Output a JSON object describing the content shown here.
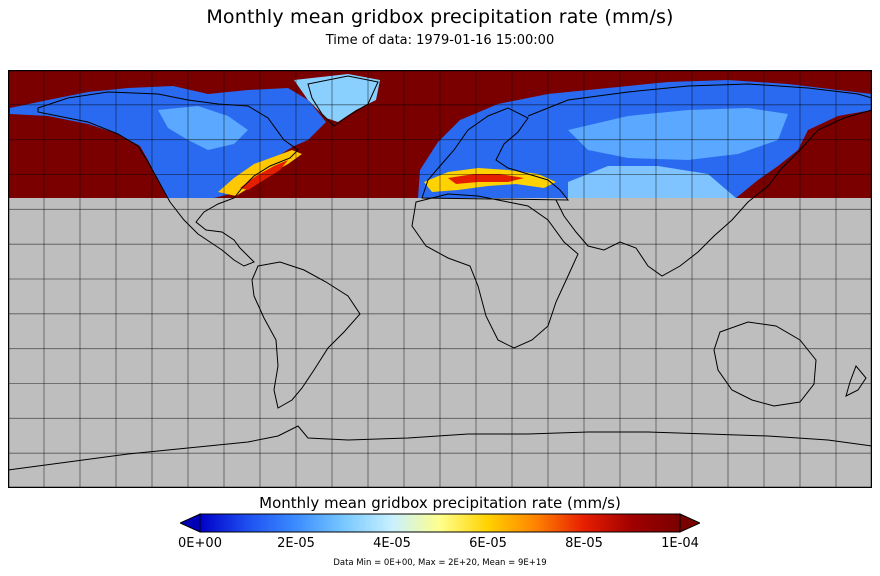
{
  "title": "Monthly mean gridbox precipitation rate (mm/s)",
  "subtitle": "Time of data: 1979-01-16 15:00:00",
  "colorbar": {
    "title": "Monthly mean gridbox precipitation rate (mm/s)",
    "ticks": [
      "0E+00",
      "2E-05",
      "4E-05",
      "6E-05",
      "8E-05",
      "1E-04"
    ],
    "range": [
      0,
      0.0001
    ],
    "colors": [
      "#0000c8",
      "#1e50f0",
      "#3c8cff",
      "#78c8ff",
      "#c8f0ff",
      "#ffff8c",
      "#ffd200",
      "#ff8200",
      "#e61e00",
      "#a00000",
      "#7a0000"
    ],
    "under_color": "#0000b4",
    "over_color": "#7a0000"
  },
  "stats": "Data Min = 0E+00, Max = 2E+20, Mean = 9E+19",
  "map": {
    "projection": "equirectangular",
    "lon_range": [
      -180,
      180
    ],
    "lat_range": [
      -90,
      90
    ],
    "grid_spacing_deg": 15,
    "data_lat_range": [
      35,
      90
    ],
    "missing_color": "#bebebe",
    "coastline_color": "#000000",
    "grid_color": "#000000"
  }
}
